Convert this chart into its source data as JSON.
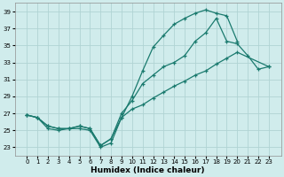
{
  "xlabel": "Humidex (Indice chaleur)",
  "x_values": [
    0,
    1,
    2,
    3,
    4,
    5,
    6,
    7,
    8,
    9,
    10,
    11,
    12,
    13,
    14,
    15,
    16,
    17,
    18,
    19,
    20,
    21,
    22,
    23
  ],
  "line1": [
    26.8,
    26.5,
    25.2,
    25.0,
    25.2,
    25.2,
    25.0,
    23.0,
    23.5,
    26.5,
    29.0,
    32.0,
    34.8,
    36.2,
    37.5,
    38.2,
    38.8,
    39.2,
    38.8,
    38.5,
    35.5,
    null,
    null,
    null
  ],
  "line2": [
    26.8,
    26.5,
    25.5,
    25.2,
    25.2,
    25.5,
    25.2,
    23.2,
    24.0,
    27.0,
    28.5,
    30.5,
    31.5,
    32.5,
    33.0,
    33.8,
    35.5,
    36.5,
    38.2,
    35.5,
    35.2,
    33.8,
    32.2,
    32.5
  ],
  "line3": [
    26.8,
    26.5,
    25.5,
    25.2,
    25.2,
    25.5,
    25.2,
    23.2,
    24.0,
    26.5,
    27.5,
    28.0,
    28.8,
    29.5,
    30.2,
    30.8,
    31.5,
    32.0,
    32.8,
    33.5,
    34.2,
    null,
    null,
    32.5
  ],
  "line_color": "#1a7a6e",
  "bg_color": "#d0ecec",
  "grid_color": "#b0d4d4",
  "ylim": [
    22.0,
    40.0
  ],
  "yticks": [
    23,
    25,
    27,
    29,
    31,
    33,
    35,
    37,
    39
  ],
  "xticks": [
    0,
    1,
    2,
    3,
    4,
    5,
    6,
    7,
    8,
    9,
    10,
    11,
    12,
    13,
    14,
    15,
    16,
    17,
    18,
    19,
    20,
    21,
    22,
    23
  ]
}
